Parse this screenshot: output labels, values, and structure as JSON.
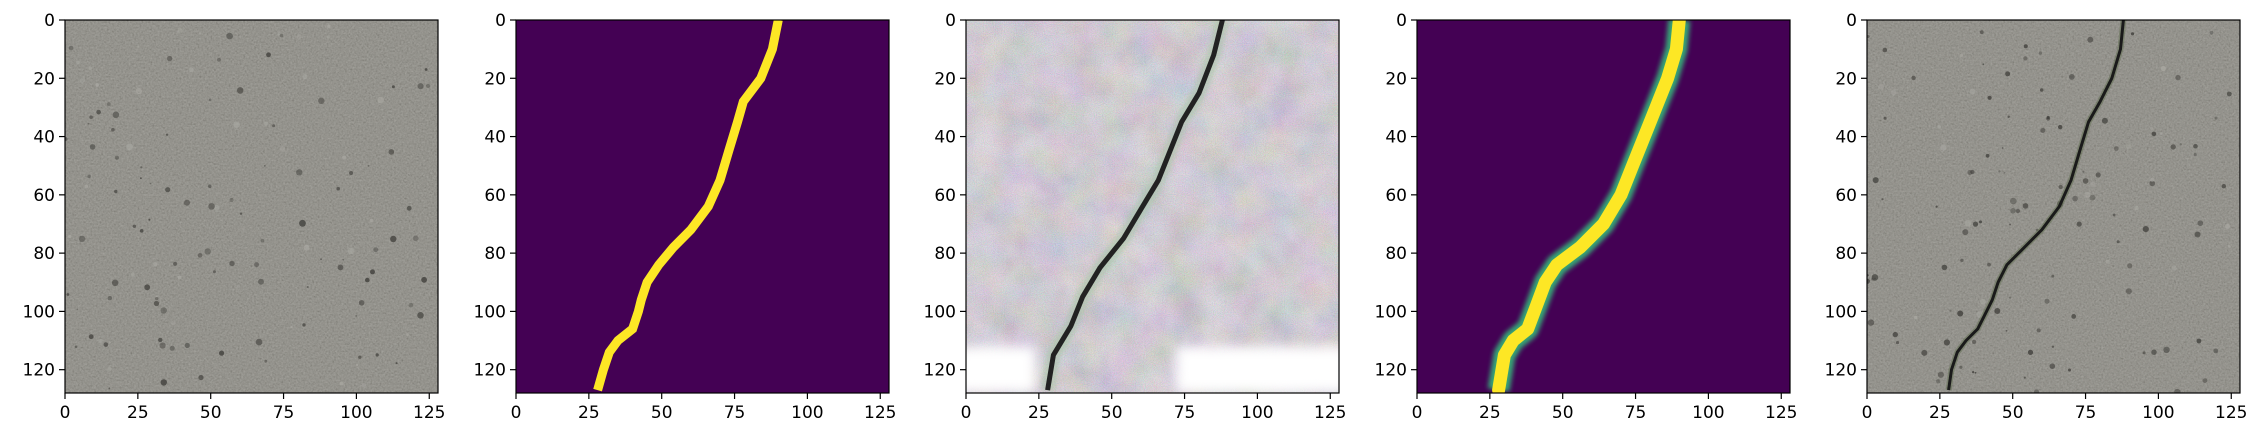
{
  "chart_data": [
    {
      "type": "image",
      "content": "concrete surface photo",
      "colors": {
        "base": "#807f7a",
        "dark": "#3f3e3a",
        "light": "#a9a8a2"
      },
      "x_ticks": [
        "0",
        "25",
        "50",
        "75",
        "100",
        "125"
      ],
      "y_ticks": [
        "0",
        "20",
        "40",
        "60",
        "80",
        "100",
        "120"
      ],
      "xlim": [
        0,
        128
      ],
      "ylim": [
        128,
        0
      ]
    },
    {
      "type": "image",
      "content": "binary crack mask",
      "colors": {
        "background": "#440154",
        "crack": "#fde725"
      },
      "crack_path": [
        [
          90,
          0
        ],
        [
          88,
          10
        ],
        [
          84,
          20
        ],
        [
          78,
          28
        ],
        [
          76,
          35
        ],
        [
          73,
          45
        ],
        [
          70,
          55
        ],
        [
          66,
          64
        ],
        [
          60,
          72
        ],
        [
          54,
          78
        ],
        [
          49,
          84
        ],
        [
          45,
          90
        ],
        [
          43,
          96
        ],
        [
          42,
          100
        ],
        [
          40,
          106
        ],
        [
          35,
          110
        ],
        [
          32,
          114
        ],
        [
          30,
          120
        ],
        [
          28,
          127
        ]
      ],
      "x_ticks": [
        "0",
        "25",
        "50",
        "75",
        "100",
        "125"
      ],
      "y_ticks": [
        "0",
        "20",
        "40",
        "60",
        "80",
        "100",
        "120"
      ],
      "xlim": [
        0,
        128
      ],
      "ylim": [
        128,
        0
      ]
    },
    {
      "type": "image",
      "content": "generated noisy crack image",
      "colors": {
        "base": "#cbbcc4",
        "pink": "#d9a6c0",
        "green": "#a8c4a8",
        "dark": "#222222",
        "bright": "#ffffff"
      },
      "crack_path": [
        [
          88,
          0
        ],
        [
          85,
          12
        ],
        [
          80,
          25
        ],
        [
          74,
          35
        ],
        [
          70,
          45
        ],
        [
          66,
          55
        ],
        [
          60,
          65
        ],
        [
          54,
          75
        ],
        [
          46,
          85
        ],
        [
          40,
          95
        ],
        [
          36,
          105
        ],
        [
          30,
          115
        ],
        [
          28,
          127
        ]
      ],
      "x_ticks": [
        "0",
        "25",
        "50",
        "75",
        "100",
        "125"
      ],
      "y_ticks": [
        "0",
        "20",
        "40",
        "60",
        "80",
        "100",
        "120"
      ],
      "xlim": [
        0,
        128
      ],
      "ylim": [
        128,
        0
      ]
    },
    {
      "type": "image",
      "content": "predicted crack probability map",
      "colors": {
        "background": "#440154",
        "crack": "#fde725",
        "edge": "#35b779"
      },
      "crack_path": [
        [
          90,
          0
        ],
        [
          89,
          10
        ],
        [
          86,
          20
        ],
        [
          82,
          30
        ],
        [
          78,
          40
        ],
        [
          74,
          50
        ],
        [
          70,
          60
        ],
        [
          64,
          70
        ],
        [
          56,
          78
        ],
        [
          48,
          84
        ],
        [
          44,
          90
        ],
        [
          41,
          98
        ],
        [
          38,
          106
        ],
        [
          33,
          110
        ],
        [
          30,
          115
        ],
        [
          28,
          127
        ]
      ],
      "x_ticks": [
        "0",
        "25",
        "50",
        "75",
        "100",
        "125"
      ],
      "y_ticks": [
        "0",
        "20",
        "40",
        "60",
        "80",
        "100",
        "120"
      ],
      "xlim": [
        0,
        128
      ],
      "ylim": [
        128,
        0
      ]
    },
    {
      "type": "image",
      "content": "concrete surface with overlaid crack",
      "colors": {
        "base": "#807f7a",
        "dark": "#3f3e3a",
        "light": "#a9a8a2",
        "crack": "#1a1a1a"
      },
      "crack_path": [
        [
          88,
          0
        ],
        [
          87,
          10
        ],
        [
          84,
          20
        ],
        [
          80,
          28
        ],
        [
          76,
          35
        ],
        [
          73,
          45
        ],
        [
          70,
          55
        ],
        [
          66,
          64
        ],
        [
          60,
          72
        ],
        [
          54,
          78
        ],
        [
          48,
          84
        ],
        [
          45,
          90
        ],
        [
          43,
          96
        ],
        [
          41,
          100
        ],
        [
          38,
          106
        ],
        [
          34,
          110
        ],
        [
          31,
          114
        ],
        [
          29,
          120
        ],
        [
          28,
          127
        ]
      ],
      "x_ticks": [
        "0",
        "25",
        "50",
        "75",
        "100",
        "125"
      ],
      "y_ticks": [
        "0",
        "20",
        "40",
        "60",
        "80",
        "100",
        "120"
      ],
      "xlim": [
        0,
        128
      ],
      "ylim": [
        128,
        0
      ]
    }
  ]
}
